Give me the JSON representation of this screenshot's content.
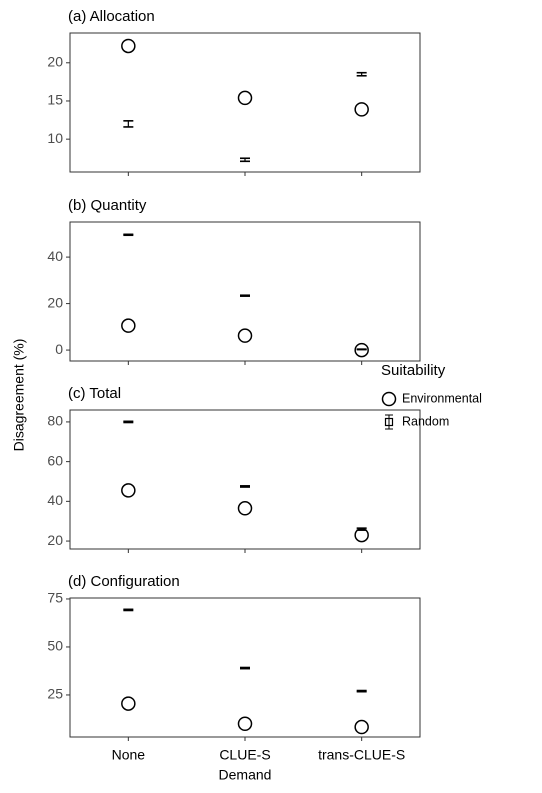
{
  "ylabel": "Disagreement (%)",
  "xlabel": "Demand",
  "categories": [
    "None",
    "CLUE-S",
    "trans-CLUE-S"
  ],
  "legend": {
    "title": "Suitability",
    "items": [
      "Environmental",
      "Random"
    ],
    "position": "right"
  },
  "chart_data": [
    {
      "type": "dot",
      "title": "(a) Allocation",
      "ylim": [
        5.7,
        23.9
      ],
      "yticks": [
        10,
        15,
        20
      ],
      "series": [
        {
          "marker": "circle",
          "values": [
            22.2,
            15.4,
            13.9
          ]
        },
        {
          "marker": "errorbar",
          "values": [
            12.0,
            7.3,
            18.5
          ],
          "errors": [
            0.4,
            0.2,
            0.2
          ]
        }
      ]
    },
    {
      "type": "dot",
      "title": "(b) Quantity",
      "ylim": [
        -4.7,
        55.1
      ],
      "yticks": [
        0,
        20,
        40
      ],
      "series": [
        {
          "marker": "circle",
          "values": [
            10.5,
            6.2,
            0
          ]
        },
        {
          "marker": "errorbar",
          "values": [
            49.6,
            23.4,
            0.3
          ],
          "errors": [
            0.2,
            0.2,
            0.1
          ]
        }
      ]
    },
    {
      "type": "dot",
      "title": "(c) Total",
      "ylim": [
        16,
        86
      ],
      "yticks": [
        20,
        40,
        60,
        80
      ],
      "series": [
        {
          "marker": "circle",
          "values": [
            45.5,
            36.5,
            23.0
          ]
        },
        {
          "marker": "errorbar",
          "values": [
            80.0,
            47.5,
            26.0
          ],
          "errors": [
            0.3,
            0.3,
            0.5
          ]
        }
      ]
    },
    {
      "type": "dot",
      "title": "(d) Configuration",
      "ylim": [
        3.1,
        75.5
      ],
      "yticks": [
        25,
        50,
        75
      ],
      "series": [
        {
          "marker": "circle",
          "values": [
            20.5,
            10.0,
            8.3
          ]
        },
        {
          "marker": "errorbar",
          "values": [
            69.3,
            39.0,
            27.0
          ],
          "errors": [
            0.3,
            0.3,
            0.3
          ]
        }
      ]
    }
  ]
}
